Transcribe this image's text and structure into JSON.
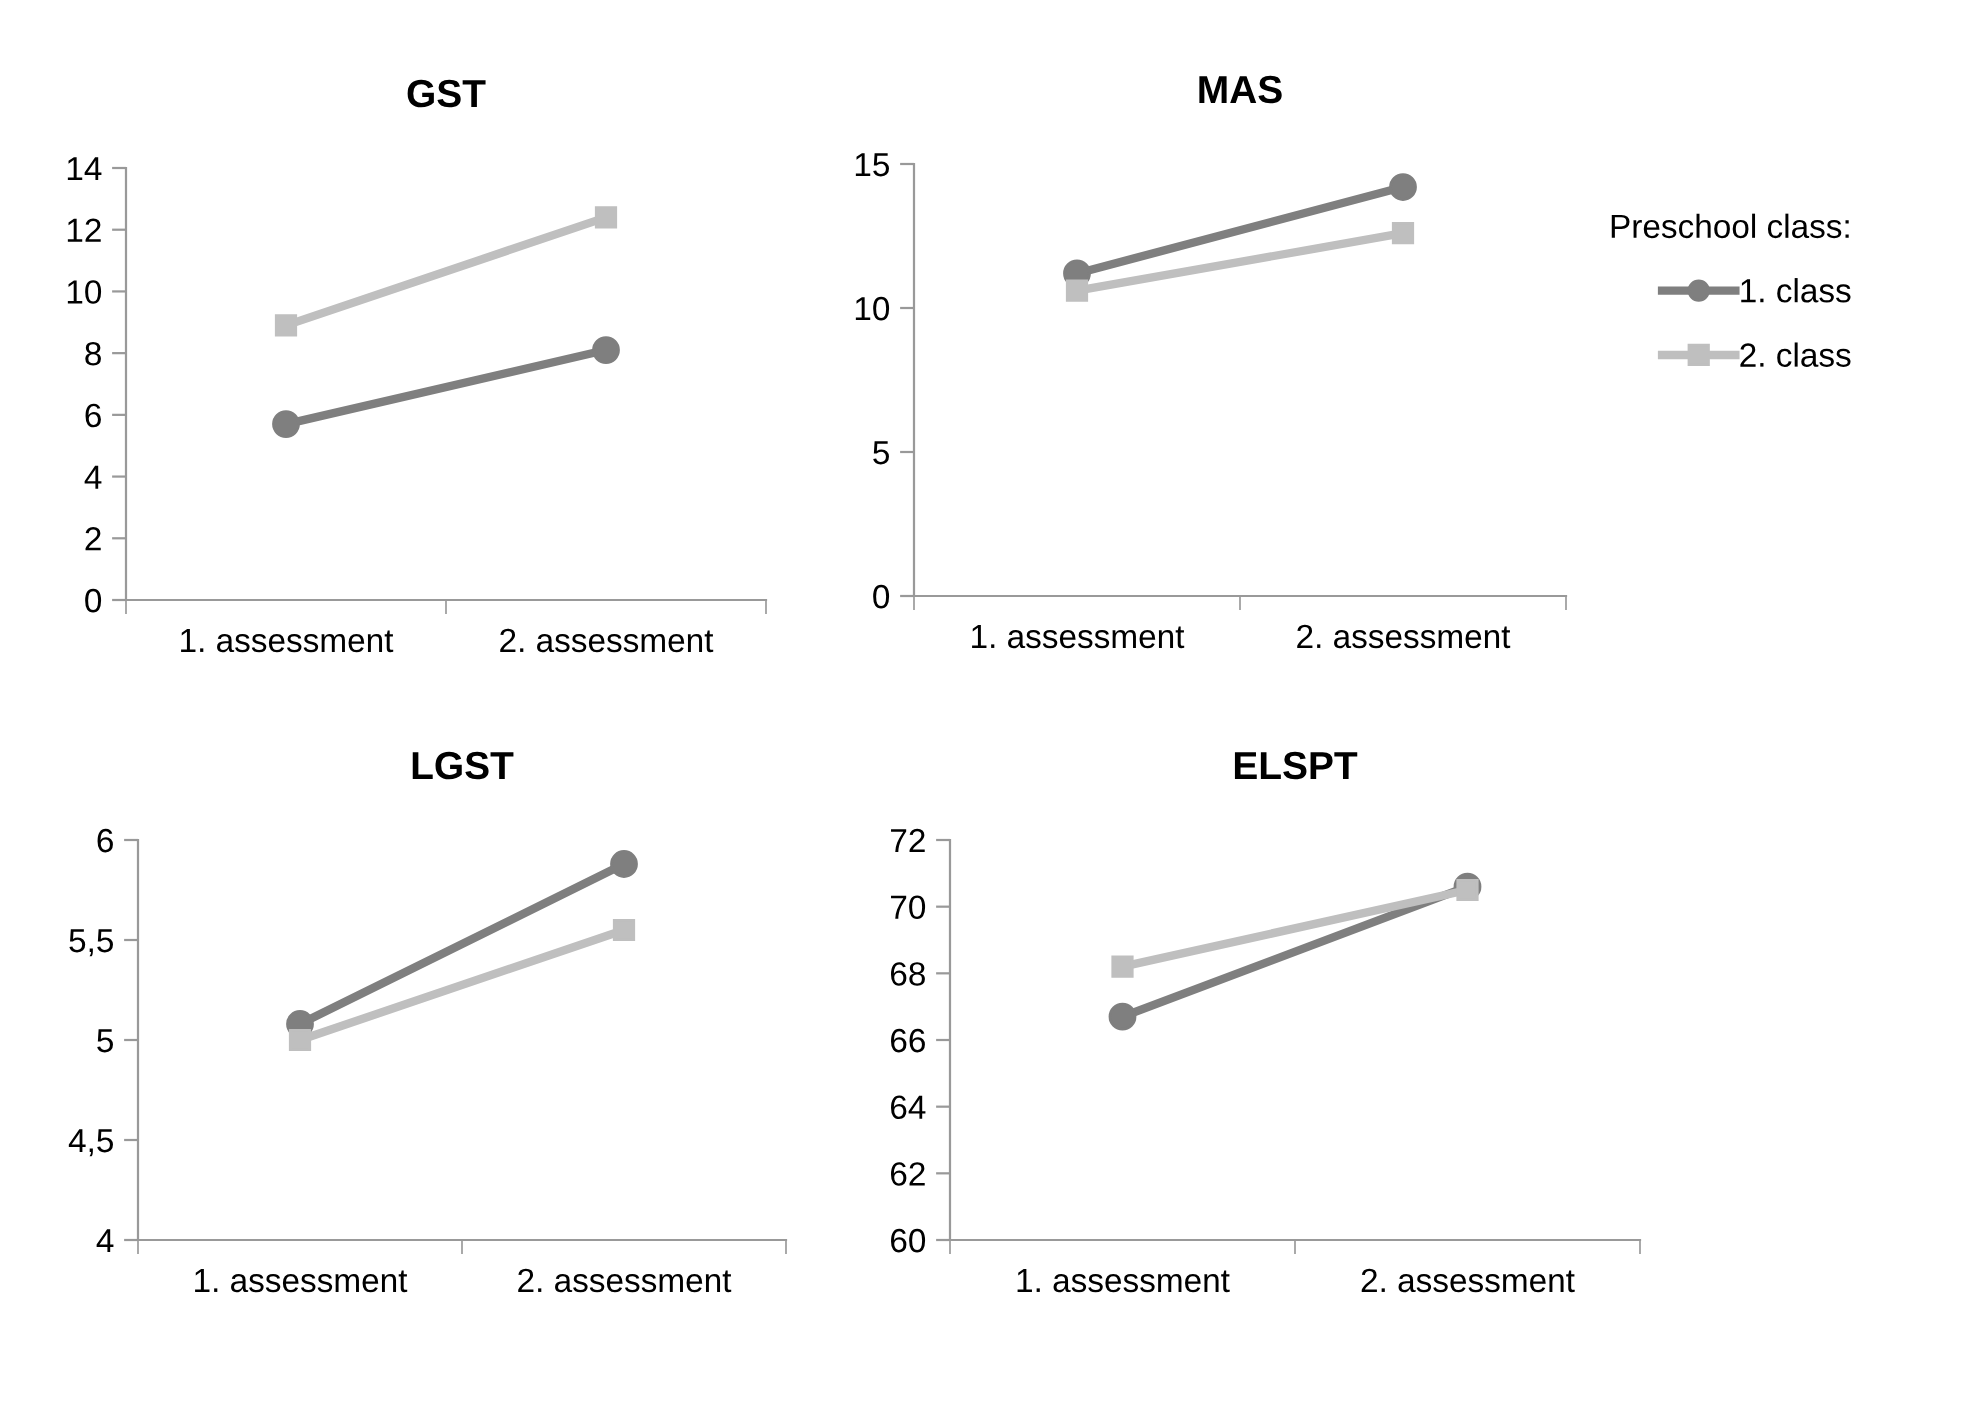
{
  "chart_data": [
    {
      "type": "line",
      "title": "GST",
      "categories": [
        "1. assessment",
        "2. assessment"
      ],
      "ylim": [
        0,
        14
      ],
      "yticks": [
        0,
        2,
        4,
        6,
        8,
        10,
        12,
        14
      ],
      "grid": false,
      "legend": false,
      "series": [
        {
          "color": "#7f7f7f",
          "marker": "circle",
          "values": [
            5.7,
            8.1
          ]
        },
        {
          "color": "#bfbfbf",
          "marker": "square",
          "values": [
            8.9,
            12.4
          ]
        }
      ]
    },
    {
      "type": "line",
      "title": "MAS",
      "categories": [
        "1. assessment",
        "2. assessment"
      ],
      "ylim": [
        0,
        15
      ],
      "yticks": [
        0,
        5,
        10,
        15
      ],
      "grid": false,
      "legend": "right",
      "legend_title": "Preschool class:",
      "series": [
        {
          "name": "1. class",
          "color": "#7f7f7f",
          "marker": "circle",
          "values": [
            11.2,
            14.2
          ]
        },
        {
          "name": "2. class",
          "color": "#bfbfbf",
          "marker": "square",
          "values": [
            10.6,
            12.6
          ]
        }
      ]
    },
    {
      "type": "line",
      "title": "LGST",
      "categories": [
        "1. assessment",
        "2. assessment"
      ],
      "ylim": [
        4,
        6
      ],
      "yticks": [
        4,
        {
          "value": 4.5,
          "label": "4,5"
        },
        5,
        {
          "value": 5.5,
          "label": "5,5"
        },
        6
      ],
      "grid": false,
      "legend": false,
      "series": [
        {
          "color": "#7f7f7f",
          "marker": "circle",
          "values": [
            5.08,
            5.88
          ]
        },
        {
          "color": "#bfbfbf",
          "marker": "square",
          "values": [
            5.0,
            5.55
          ]
        }
      ]
    },
    {
      "type": "line",
      "title": "ELSPT",
      "categories": [
        "1. assessment",
        "2. assessment"
      ],
      "ylim": [
        60,
        72
      ],
      "yticks": [
        60,
        62,
        64,
        66,
        68,
        70,
        72
      ],
      "grid": false,
      "legend": false,
      "series": [
        {
          "color": "#7f7f7f",
          "marker": "circle",
          "values": [
            66.7,
            70.6
          ]
        },
        {
          "color": "#bfbfbf",
          "marker": "square",
          "values": [
            68.2,
            70.5
          ]
        }
      ]
    }
  ]
}
